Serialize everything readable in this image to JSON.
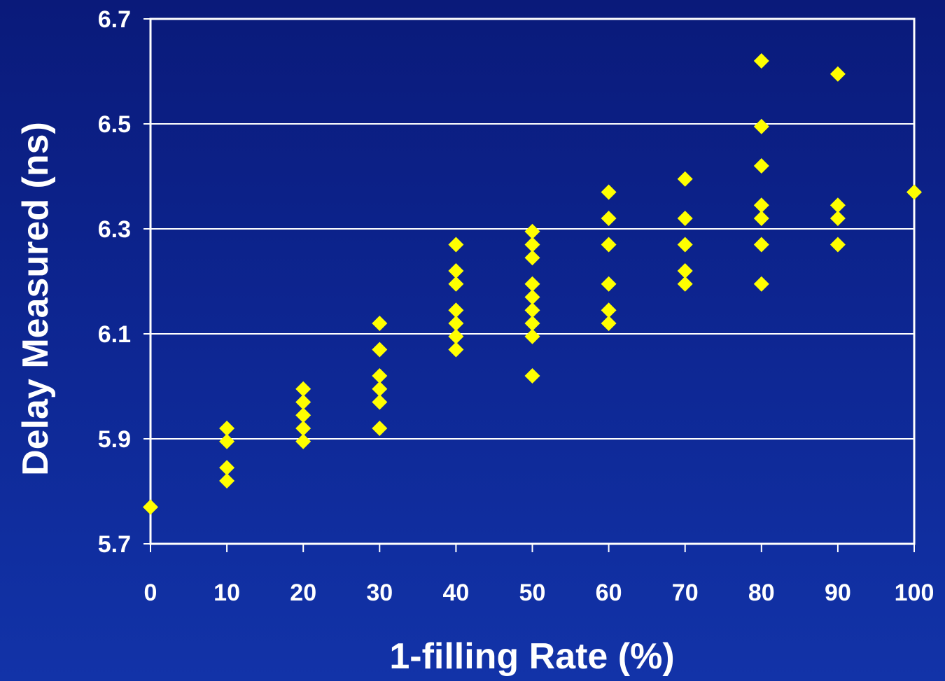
{
  "chart_data": {
    "type": "scatter",
    "title": "",
    "xlabel": "1-filling Rate (%)",
    "ylabel": "Delay Measured (ns)",
    "xlim": [
      0,
      100
    ],
    "ylim": [
      5.7,
      6.7
    ],
    "x_ticks": [
      "0",
      "10",
      "20",
      "30",
      "40",
      "50",
      "60",
      "70",
      "80",
      "90",
      "100"
    ],
    "y_ticks": [
      "5.7",
      "5.9",
      "6.1",
      "6.3",
      "6.5",
      "6.7"
    ],
    "grid": "horizontal",
    "marker": "diamond",
    "marker_color": "#ffff00",
    "series": [
      {
        "points": [
          [
            0,
            5.77
          ],
          [
            10,
            5.92
          ],
          [
            10,
            5.895
          ],
          [
            10,
            5.845
          ],
          [
            10,
            5.82
          ],
          [
            20,
            5.995
          ],
          [
            20,
            5.97
          ],
          [
            20,
            5.945
          ],
          [
            20,
            5.92
          ],
          [
            20,
            5.895
          ],
          [
            30,
            6.12
          ],
          [
            30,
            6.07
          ],
          [
            30,
            6.02
          ],
          [
            30,
            5.995
          ],
          [
            30,
            5.97
          ],
          [
            30,
            5.92
          ],
          [
            40,
            6.27
          ],
          [
            40,
            6.22
          ],
          [
            40,
            6.195
          ],
          [
            40,
            6.145
          ],
          [
            40,
            6.12
          ],
          [
            40,
            6.095
          ],
          [
            40,
            6.07
          ],
          [
            50,
            6.295
          ],
          [
            50,
            6.27
          ],
          [
            50,
            6.245
          ],
          [
            50,
            6.195
          ],
          [
            50,
            6.17
          ],
          [
            50,
            6.145
          ],
          [
            50,
            6.12
          ],
          [
            50,
            6.095
          ],
          [
            50,
            6.02
          ],
          [
            60,
            6.37
          ],
          [
            60,
            6.32
          ],
          [
            60,
            6.27
          ],
          [
            60,
            6.195
          ],
          [
            60,
            6.145
          ],
          [
            60,
            6.12
          ],
          [
            70,
            6.395
          ],
          [
            70,
            6.32
          ],
          [
            70,
            6.27
          ],
          [
            70,
            6.22
          ],
          [
            70,
            6.195
          ],
          [
            80,
            6.62
          ],
          [
            80,
            6.495
          ],
          [
            80,
            6.42
          ],
          [
            80,
            6.345
          ],
          [
            80,
            6.32
          ],
          [
            80,
            6.27
          ],
          [
            80,
            6.195
          ],
          [
            90,
            6.595
          ],
          [
            90,
            6.345
          ],
          [
            90,
            6.32
          ],
          [
            90,
            6.27
          ],
          [
            100,
            6.37
          ]
        ]
      }
    ]
  }
}
